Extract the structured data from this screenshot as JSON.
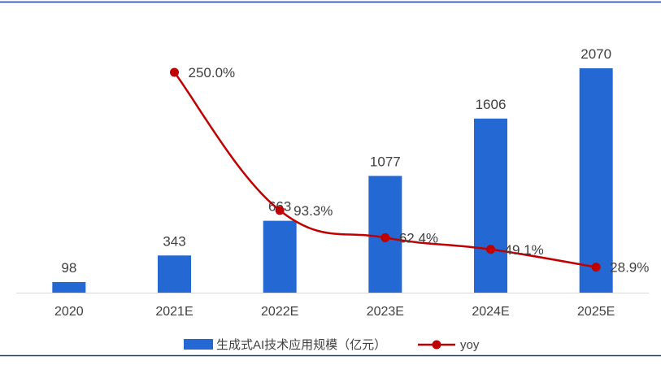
{
  "chart_data": {
    "type": "bar",
    "categories": [
      "2020",
      "2021E",
      "2022E",
      "2023E",
      "2024E",
      "2025E"
    ],
    "series": [
      {
        "name": "生成式AI技术应用规模（亿元）",
        "type": "bar",
        "axis": "left",
        "values": [
          98,
          343,
          663,
          1077,
          1606,
          2070
        ],
        "labels": [
          "98",
          "343",
          "663",
          "1077",
          "1606",
          "2070"
        ]
      },
      {
        "name": "yoy",
        "type": "line",
        "axis": "right",
        "smooth": true,
        "values": [
          null,
          250.0,
          93.3,
          62.4,
          49.1,
          28.9
        ],
        "labels": [
          "",
          "250.0%",
          "93.3%",
          "62.4%",
          "49.1%",
          "28.9%"
        ]
      }
    ],
    "ylim": [
      0,
      2100
    ],
    "y2lim": [
      0,
      300
    ],
    "grid": false,
    "legend_position": "bottom",
    "colors": {
      "bar": "#2468D3",
      "line": "#C00000",
      "frame": "#1F3A8A",
      "axis": "#D9D9D9",
      "text": "#404040"
    }
  }
}
